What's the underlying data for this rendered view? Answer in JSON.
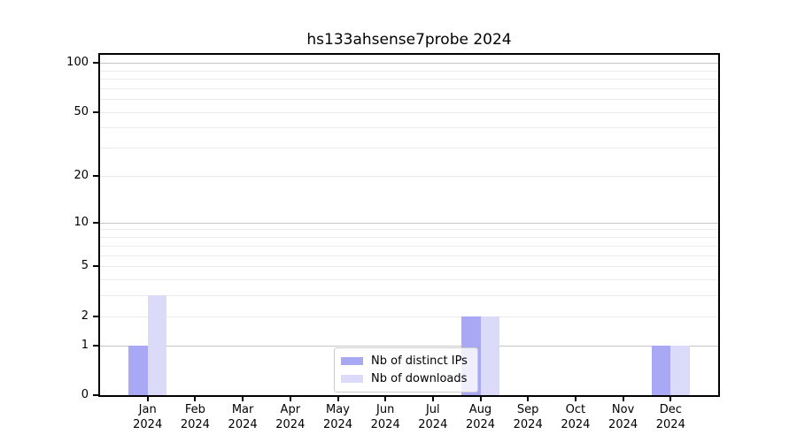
{
  "window": {
    "background": "#ffffff"
  },
  "chart_data": {
    "type": "bar",
    "title": "hs133ahsense7probe 2024",
    "categories": [
      "Jan",
      "Feb",
      "Mar",
      "Apr",
      "May",
      "Jun",
      "Jul",
      "Aug",
      "Sep",
      "Oct",
      "Nov",
      "Dec"
    ],
    "x_tick_labels": [
      [
        "Jan",
        "2024"
      ],
      [
        "Feb",
        "2024"
      ],
      [
        "Mar",
        "2024"
      ],
      [
        "Apr",
        "2024"
      ],
      [
        "May",
        "2024"
      ],
      [
        "Jun",
        "2024"
      ],
      [
        "Jul",
        "2024"
      ],
      [
        "Aug",
        "2024"
      ],
      [
        "Sep",
        "2024"
      ],
      [
        "Oct",
        "2024"
      ],
      [
        "Nov",
        "2024"
      ],
      [
        "Dec",
        "2024"
      ]
    ],
    "series": [
      {
        "name": "Nb of distinct IPs",
        "color": "#a8a8f4",
        "values": [
          1,
          0,
          0,
          0,
          0,
          0,
          0,
          2,
          0,
          0,
          0,
          1
        ]
      },
      {
        "name": "Nb of downloads",
        "color": "#dbdbf9",
        "values": [
          3,
          0,
          0,
          0,
          0,
          0,
          0,
          2,
          0,
          0,
          0,
          1
        ]
      }
    ],
    "y_axis": {
      "scale": "log(1+x)",
      "tick_values": [
        0,
        1,
        2,
        5,
        10,
        20,
        50,
        100
      ],
      "tick_labels": [
        "0",
        "1",
        "2",
        "5",
        "10",
        "20",
        "50",
        "100"
      ],
      "major_gridlines": [
        1,
        10,
        100
      ],
      "minor_gridlines": [
        2,
        3,
        4,
        5,
        6,
        7,
        8,
        9,
        20,
        30,
        40,
        50,
        60,
        70,
        80,
        90
      ],
      "ylim": [
        0,
        112
      ]
    },
    "legend": {
      "entries": [
        "Nb of distinct IPs",
        "Nb of downloads"
      ],
      "position": "lower-center"
    },
    "grid": "on",
    "colors": {
      "axis": "#000000",
      "major_grid": "#c4c4c4",
      "minor_grid": "#ebebeb",
      "legend_border": "#cccccc",
      "legend_background": "rgba(255,255,255,0.8)"
    }
  }
}
